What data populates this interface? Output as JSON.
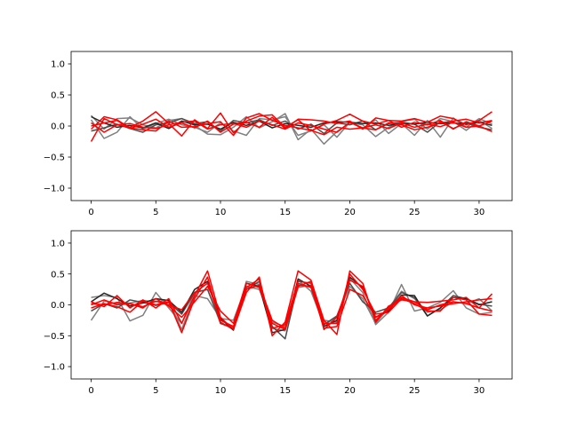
{
  "chart_data": [
    {
      "type": "line",
      "title": "",
      "xlabel": "",
      "ylabel": "",
      "xlim": [
        -1.55,
        32.55
      ],
      "ylim": [
        -1.2,
        1.2
      ],
      "xticks": [
        0,
        5,
        10,
        15,
        20,
        25,
        30
      ],
      "yticks": [
        -1.0,
        -0.5,
        0.0,
        0.5,
        1.0
      ],
      "xtick_labels": [
        "0",
        "5",
        "10",
        "15",
        "20",
        "25",
        "30"
      ],
      "ytick_labels": [
        "−1.0",
        "−0.5",
        "0.0",
        "0.5",
        "1.0"
      ],
      "grid": false,
      "x": [
        0,
        1,
        2,
        3,
        4,
        5,
        6,
        7,
        8,
        9,
        10,
        11,
        12,
        13,
        14,
        15,
        16,
        17,
        18,
        19,
        20,
        21,
        22,
        23,
        24,
        25,
        26,
        27,
        28,
        29,
        30,
        31
      ],
      "series": [
        {
          "color": "#808080",
          "values": [
            0.17,
            -0.05,
            0.12,
            0.13,
            0.02,
            -0.03,
            0.09,
            0.12,
            0.01,
            -0.13,
            -0.14,
            -0.02,
            0.15,
            -0.03,
            0.07,
            0.2,
            -0.22,
            -0.05,
            -0.29,
            -0.09,
            0.05,
            0.02,
            -0.17,
            -0.02,
            0.07,
            0.11,
            -0.05,
            0.12,
            0.07,
            -0.07,
            0.09,
            -0.04
          ]
        },
        {
          "color": "#808080",
          "values": [
            0.1,
            -0.2,
            -0.1,
            0.15,
            -0.05,
            0.04,
            0.11,
            0.02,
            -0.02,
            -0.1,
            0.05,
            -0.08,
            -0.15,
            0.12,
            0.1,
            0.15,
            -0.15,
            -0.08,
            0.02,
            -0.18,
            0.06,
            -0.04,
            0.1,
            -0.12,
            0.04,
            -0.15,
            0.09,
            -0.18,
            0.13,
            -0.02,
            0.12,
            0.03
          ]
        },
        {
          "color": "#4d4d4d",
          "values": [
            -0.08,
            -0.03,
            0.03,
            -0.04,
            -0.1,
            0.02,
            0.05,
            0.12,
            0.04,
            0.07,
            -0.08,
            0.09,
            0.05,
            0.1,
            0.01,
            0.08,
            -0.05,
            0.03,
            -0.12,
            0.05,
            0.02,
            0.08,
            -0.06,
            0.04,
            0.06,
            0.03,
            -0.1,
            0.07,
            -0.04,
            0.05,
            -0.02,
            -0.06
          ]
        },
        {
          "color": "#262626",
          "values": [
            0.15,
            0.05,
            -0.02,
            0.01,
            -0.03,
            0.05,
            -0.04,
            0.08,
            0.02,
            0.03,
            -0.05,
            0.06,
            0.01,
            0.08,
            -0.03,
            0.04,
            0.01,
            -0.02,
            0.05,
            0.07,
            0.06,
            0.04,
            0.05,
            0.01,
            0.04,
            0.03,
            0.06,
            0.04,
            0.05,
            0.03,
            0.06,
            0.01
          ]
        },
        {
          "color": "#ff0000",
          "values": [
            -0.25,
            0.12,
            0.02,
            -0.02,
            0.08,
            0.23,
            0.04,
            -0.16,
            0.1,
            -0.04,
            0.21,
            -0.11,
            0.08,
            0.16,
            0.18,
            -0.02,
            0.1,
            -0.08,
            0.03,
            0.09,
            0.19,
            0.08,
            0.03,
            0.09,
            0.08,
            0.12,
            0.06,
            0.16,
            0.12,
            0.02,
            0.09,
            0.23
          ]
        },
        {
          "color": "#ff0000",
          "values": [
            -0.05,
            0.15,
            0.1,
            -0.03,
            -0.06,
            -0.08,
            0.08,
            -0.02,
            -0.01,
            0.04,
            0.07,
            -0.15,
            0.13,
            0.2,
            0.09,
            0.01,
            -0.03,
            -0.07,
            -0.14,
            -0.02,
            -0.05,
            -0.03,
            -0.06,
            0.05,
            0.02,
            -0.06,
            -0.02,
            0.05,
            0.08,
            0.11,
            0.05,
            0.09
          ]
        },
        {
          "color": "#ff0000",
          "values": [
            0.0,
            0.05,
            0.09,
            -0.04,
            0.03,
            0.11,
            -0.02,
            0.05,
            -0.03,
            0.08,
            -0.1,
            0.03,
            0.06,
            -0.02,
            0.14,
            -0.04,
            0.11,
            0.1,
            0.08,
            0.04,
            0.08,
            -0.05,
            0.13,
            0.09,
            -0.02,
            0.06,
            0.02,
            0.09,
            -0.05,
            0.07,
            0.0,
            0.08
          ]
        },
        {
          "color": "#ff0000",
          "values": [
            0.05,
            -0.1,
            0.02,
            0.04,
            -0.02,
            -0.04,
            0.02,
            0.06,
            0.08,
            -0.05,
            0.02,
            0.04,
            -0.02,
            0.08,
            0.02,
            -0.05,
            0.05,
            0.01,
            -0.05,
            -0.1,
            0.06,
            -0.03,
            0.02,
            -0.04,
            0.05,
            -0.02,
            0.03,
            -0.01,
            0.06,
            -0.02,
            0.0,
            -0.09
          ]
        }
      ]
    },
    {
      "type": "line",
      "title": "",
      "xlabel": "",
      "ylabel": "",
      "xlim": [
        -1.55,
        32.55
      ],
      "ylim": [
        -1.2,
        1.2
      ],
      "xticks": [
        0,
        5,
        10,
        15,
        20,
        25,
        30
      ],
      "yticks": [
        -1.0,
        -0.5,
        0.0,
        0.5,
        1.0
      ],
      "xtick_labels": [
        "0",
        "5",
        "10",
        "15",
        "20",
        "25",
        "30"
      ],
      "ytick_labels": [
        "−1.0",
        "−0.5",
        "0.0",
        "0.5",
        "1.0"
      ],
      "grid": false,
      "x": [
        0,
        1,
        2,
        3,
        4,
        5,
        6,
        7,
        8,
        9,
        10,
        11,
        12,
        13,
        14,
        15,
        16,
        17,
        18,
        19,
        20,
        21,
        22,
        23,
        24,
        25,
        26,
        27,
        28,
        29,
        30,
        31
      ],
      "series": [
        {
          "color": "#808080",
          "values": [
            0.12,
            0.15,
            0.12,
            -0.26,
            -0.17,
            0.2,
            -0.05,
            -0.3,
            0.2,
            0.25,
            -0.3,
            -0.36,
            0.38,
            0.33,
            -0.38,
            -0.42,
            0.28,
            0.32,
            -0.25,
            -0.28,
            0.43,
            0.2,
            -0.32,
            -0.12,
            0.33,
            -0.1,
            -0.05,
            0.04,
            0.23,
            -0.05,
            -0.15,
            -0.12
          ]
        },
        {
          "color": "#808080",
          "values": [
            -0.25,
            0.06,
            0.02,
            0.03,
            0.07,
            0.05,
            0.08,
            -0.4,
            0.15,
            0.1,
            -0.22,
            -0.25,
            0.3,
            0.25,
            -0.28,
            -0.35,
            0.4,
            0.22,
            -0.32,
            -0.2,
            0.3,
            0.1,
            -0.3,
            -0.05,
            0.22,
            0.1,
            -0.12,
            -0.08,
            0.05,
            0.02,
            0.1,
            -0.1
          ]
        },
        {
          "color": "#4d4d4d",
          "values": [
            -0.1,
            0.02,
            -0.05,
            0.08,
            0.04,
            -0.01,
            0.04,
            -0.15,
            0.2,
            0.25,
            -0.28,
            -0.4,
            0.25,
            0.38,
            -0.35,
            -0.55,
            0.35,
            0.28,
            -0.32,
            -0.18,
            0.35,
            0.05,
            -0.12,
            -0.05,
            0.2,
            0.12,
            -0.18,
            -0.05,
            0.15,
            0.1,
            0.01,
            -0.02
          ]
        },
        {
          "color": "#262626",
          "values": [
            0.05,
            0.19,
            0.1,
            -0.02,
            0.03,
            0.1,
            0.07,
            -0.12,
            0.25,
            0.38,
            -0.22,
            -0.41,
            0.35,
            0.3,
            -0.45,
            -0.4,
            0.42,
            0.3,
            -0.35,
            -0.25,
            0.45,
            0.28,
            -0.2,
            -0.1,
            0.16,
            0.15,
            -0.18,
            -0.05,
            0.12,
            0.1,
            0.0,
            0.05
          ]
        },
        {
          "color": "#ff0000",
          "values": [
            0.05,
            -0.03,
            0.15,
            -0.05,
            0.08,
            -0.05,
            0.1,
            -0.3,
            0.15,
            0.55,
            -0.2,
            -0.4,
            0.2,
            0.45,
            -0.5,
            -0.28,
            0.55,
            0.4,
            -0.25,
            -0.48,
            0.55,
            0.35,
            -0.28,
            -0.02,
            0.08,
            0.05,
            0.04,
            0.06,
            0.08,
            0.12,
            -0.05,
            0.18
          ]
        },
        {
          "color": "#ff0000",
          "values": [
            -0.05,
            0.02,
            -0.03,
            -0.12,
            0.06,
            0.0,
            0.05,
            -0.45,
            0.1,
            0.45,
            -0.3,
            -0.38,
            0.28,
            0.42,
            -0.38,
            -0.32,
            0.38,
            0.35,
            -0.3,
            -0.3,
            0.5,
            0.25,
            -0.15,
            -0.12,
            0.1,
            0.02,
            -0.1,
            -0.1,
            0.12,
            0.08,
            -0.15,
            -0.17
          ]
        },
        {
          "color": "#ff0000",
          "values": [
            0.0,
            0.08,
            0.0,
            0.02,
            -0.05,
            0.1,
            -0.02,
            -0.2,
            0.05,
            0.3,
            -0.1,
            -0.3,
            0.35,
            0.28,
            -0.3,
            -0.4,
            0.3,
            0.38,
            -0.4,
            -0.2,
            0.4,
            0.3,
            -0.25,
            -0.05,
            0.15,
            0.0,
            -0.05,
            -0.02,
            0.02,
            0.05,
            0.08,
            0.1
          ]
        },
        {
          "color": "#ff0000",
          "values": [
            0.02,
            0.0,
            0.04,
            0.02,
            -0.03,
            0.06,
            0.0,
            -0.08,
            0.2,
            0.35,
            -0.25,
            -0.35,
            0.25,
            0.32,
            -0.25,
            -0.38,
            0.32,
            0.3,
            -0.38,
            -0.35,
            0.25,
            0.15,
            -0.2,
            -0.08,
            0.12,
            0.05,
            -0.08,
            0.0,
            0.05,
            0.02,
            -0.05,
            -0.1
          ]
        }
      ]
    }
  ]
}
